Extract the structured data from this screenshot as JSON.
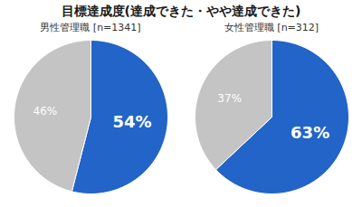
{
  "title": "目標達成度(達成できた・やや達成できた)",
  "chart_data": [
    {
      "type": "pie",
      "title": "男性管理職 [n=1341]",
      "values": [
        54,
        46
      ],
      "value_labels": [
        "54%",
        "46%"
      ],
      "colors": [
        "#2264c8",
        "#c4c4c4"
      ],
      "data_labels": true
    },
    {
      "type": "pie",
      "title": "女性管理職 [n=312]",
      "values": [
        63,
        37
      ],
      "value_labels": [
        "63%",
        "37%"
      ],
      "colors": [
        "#2264c8",
        "#c4c4c4"
      ],
      "data_labels": true
    }
  ]
}
